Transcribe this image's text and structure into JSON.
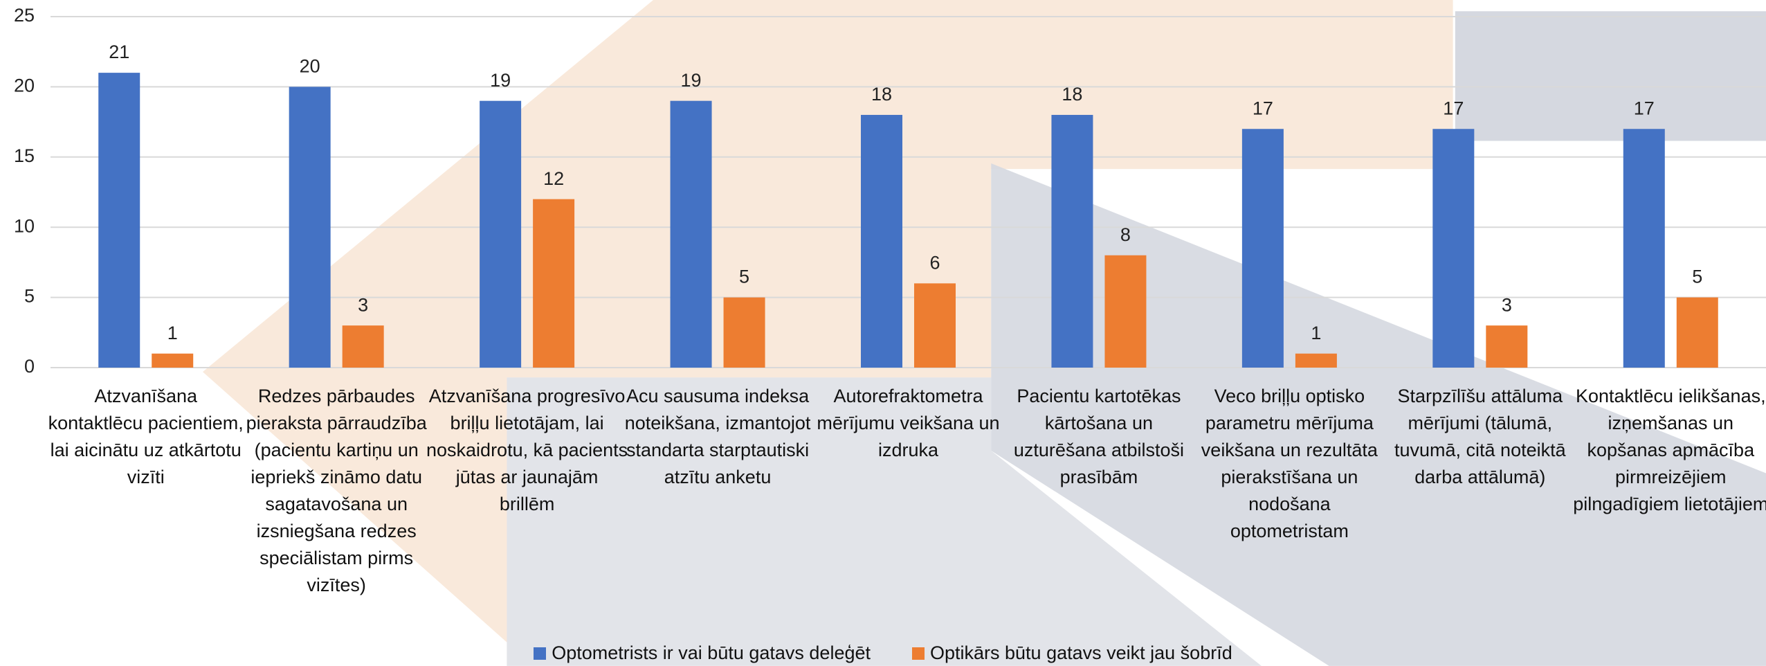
{
  "chart_data": {
    "type": "bar",
    "categories": [
      "Atzvanīšana kontaktlēcu pacientiem, lai aicinātu uz atkārtotu vizīti",
      "Redzes pārbaudes pieraksta pārraudzība (pacientu kartiņu un iepriekš zināmo datu sagatavošana un izsniegšana redzes speciālistam pirms vizītes)",
      "Atzvanīšana progresīvo briļļu lietotājam, lai noskaidrotu, kā pacients jūtas ar jaunajām brillēm",
      "Acu sausuma indeksa noteikšana, izmantojot standarta starptautiski atzītu anketu",
      "Autorefraktometra mērījumu veikšana un izdruka",
      "Pacientu kartotēkas kārtošana un uzturēšana atbilstoši prasībām",
      "Veco briļļu optisko parametru mērījuma veikšana un rezultāta pierakstīšana un nodošana optometristam",
      "Starpzīlīšu attāluma mērījumi (tālumā, tuvumā, citā noteiktā darba attālumā)",
      "Kontaktlēcu ielikšanas, izņemšanas un kopšanas apmācība pirmreizējiem pilngadīgiem lietotājiem"
    ],
    "series": [
      {
        "name": "Optometrists ir vai būtu gatavs deleģēt",
        "color": "#4472c4",
        "values": [
          21,
          20,
          19,
          19,
          18,
          18,
          17,
          17,
          17
        ]
      },
      {
        "name": "Optikārs būtu gatavs veikt jau šobrīd",
        "color": "#ed7d31",
        "values": [
          1,
          3,
          12,
          5,
          6,
          8,
          1,
          3,
          5
        ]
      }
    ],
    "ylim": [
      0,
      25
    ],
    "yticks": [
      0,
      5,
      10,
      15,
      20,
      25
    ],
    "grid": true,
    "legend": "bottom"
  }
}
